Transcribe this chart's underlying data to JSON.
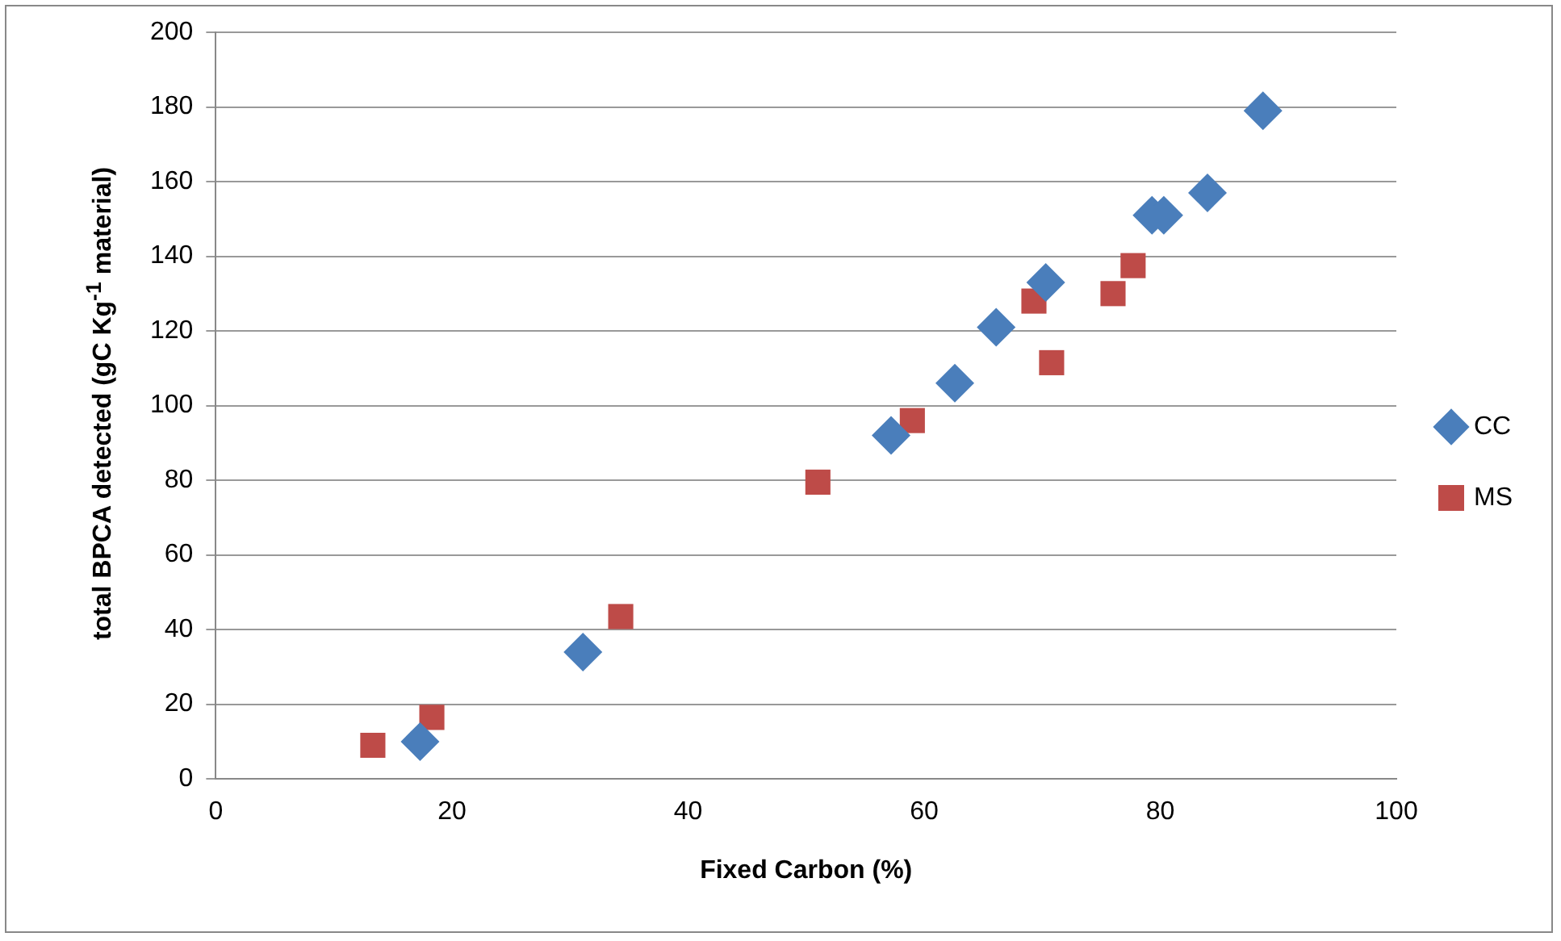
{
  "chart_data": {
    "type": "scatter",
    "xlabel": "Fixed Carbon (%)",
    "ylabel": "total BPCA detected (gC Kg$^{-1}$ material)",
    "xlim": [
      0,
      100
    ],
    "xticks": [
      0,
      20,
      40,
      60,
      80,
      100
    ],
    "ylim": [
      0,
      200
    ],
    "yticks": [
      0,
      20,
      40,
      60,
      80,
      100,
      120,
      140,
      160,
      180,
      200
    ],
    "grid": "y",
    "legend": "right",
    "series": [
      {
        "name": "CC",
        "color": "#4a7ebb",
        "marker": "diamond",
        "x": [
          17.3,
          31.1,
          57.2,
          62.6,
          66.1,
          70.3,
          79.3,
          80.3,
          84,
          88.7
        ],
        "values": [
          10,
          34,
          92,
          106,
          121,
          133,
          151,
          151,
          157,
          179
        ]
      },
      {
        "name": "MS",
        "color": "#be4b48",
        "marker": "square",
        "x": [
          13.3,
          18.3,
          34.3,
          51,
          59,
          69.3,
          70.8,
          76,
          77.7
        ],
        "values": [
          9,
          16.5,
          43.5,
          79.5,
          96,
          128,
          111.5,
          130,
          137.5
        ]
      }
    ]
  }
}
